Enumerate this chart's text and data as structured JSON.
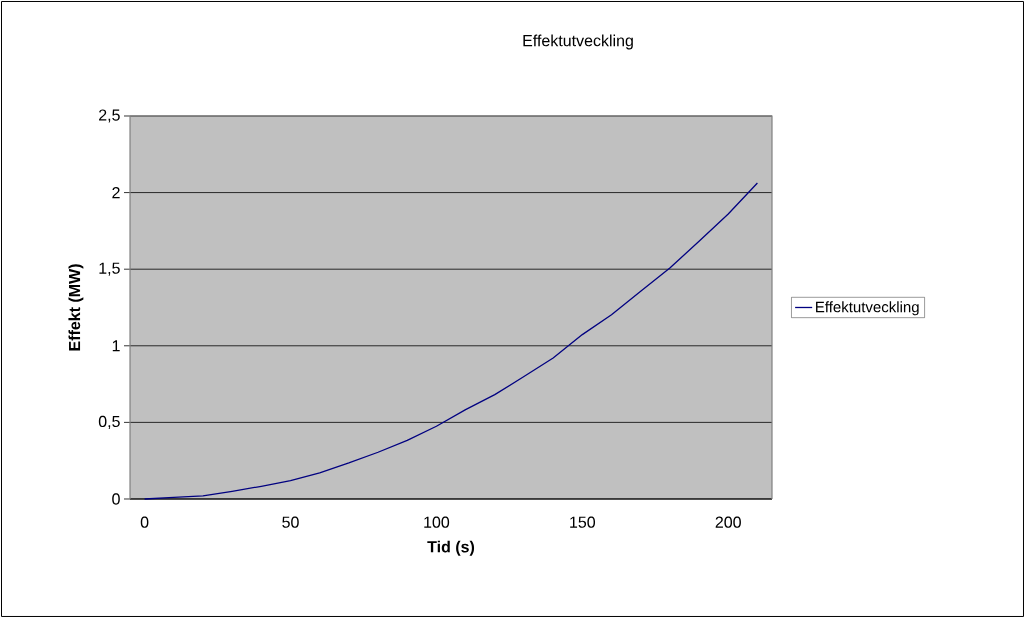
{
  "chart_data": {
    "type": "line",
    "title": "Effektutveckling",
    "xlabel": "Tid (s)",
    "ylabel": "Effekt (MW)",
    "categories": [
      "0",
      null,
      null,
      null,
      null,
      "50",
      null,
      null,
      null,
      null,
      "100",
      null,
      null,
      null,
      null,
      "150",
      null,
      null,
      null,
      null,
      "200",
      null
    ],
    "series": [
      {
        "name": "Effektutveckling",
        "color": "#000080",
        "values": [
          0.0,
          0.01,
          0.02,
          0.05,
          0.083,
          0.12,
          0.17,
          0.235,
          0.305,
          0.383,
          0.475,
          0.583,
          0.681,
          0.8,
          0.92,
          1.073,
          1.203,
          1.356,
          1.508,
          1.682,
          1.86,
          2.063
        ]
      }
    ],
    "ylim": [
      0,
      2.5
    ],
    "yticks": [
      0,
      {
        "value": 0.5,
        "label": "0,5"
      },
      1,
      {
        "value": 1.5,
        "label": "1,5"
      },
      2,
      {
        "value": 2.5,
        "label": "2,5"
      }
    ],
    "grid": "y",
    "legend": "right",
    "marker": "none",
    "line_style": "solid"
  }
}
